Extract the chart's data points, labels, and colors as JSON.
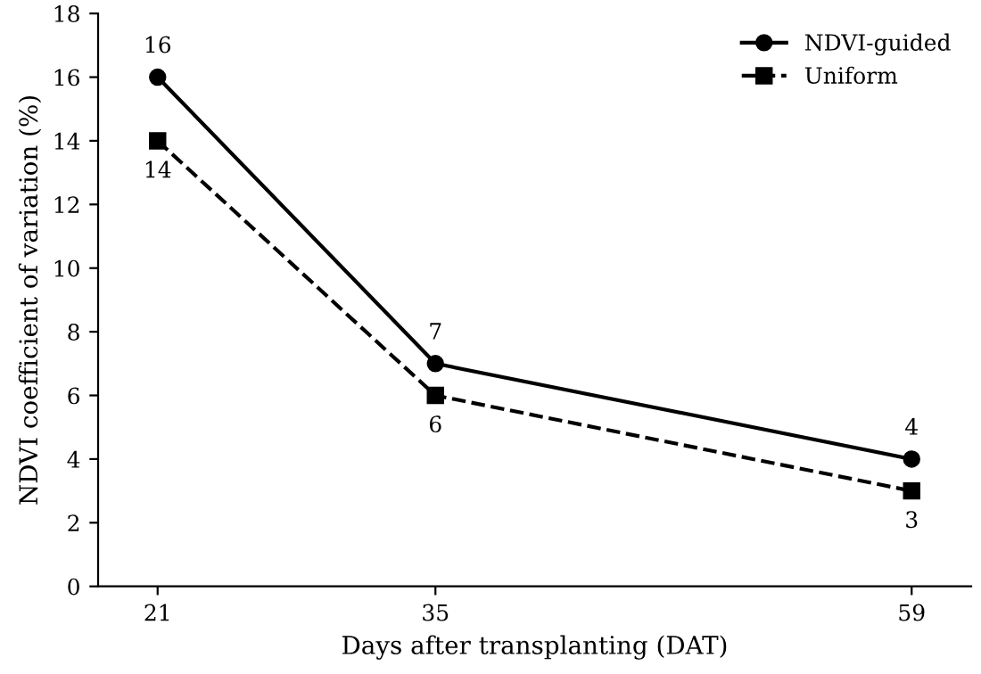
{
  "chart_data": {
    "type": "line",
    "xlabel": "Days after transplanting (DAT)",
    "ylabel": "NDVI coefficient of variation (%)",
    "x": [
      21,
      35,
      59
    ],
    "series": [
      {
        "name": "NDVI-guided",
        "color": "#000000",
        "values": [
          16,
          7,
          4
        ],
        "marker": "circle",
        "line_style": "solid"
      },
      {
        "name": "Uniform",
        "color": "#000000",
        "values": [
          14,
          6,
          3
        ],
        "marker": "square",
        "line_style": "dashed"
      }
    ],
    "xlim": [
      18,
      62
    ],
    "xticks": [
      21,
      35,
      59
    ],
    "ylim": [
      0,
      18
    ],
    "yticks": [
      0,
      2,
      4,
      6,
      8,
      10,
      12,
      14,
      16,
      18
    ],
    "data_labels": true,
    "legend": "top right",
    "grid": false
  }
}
